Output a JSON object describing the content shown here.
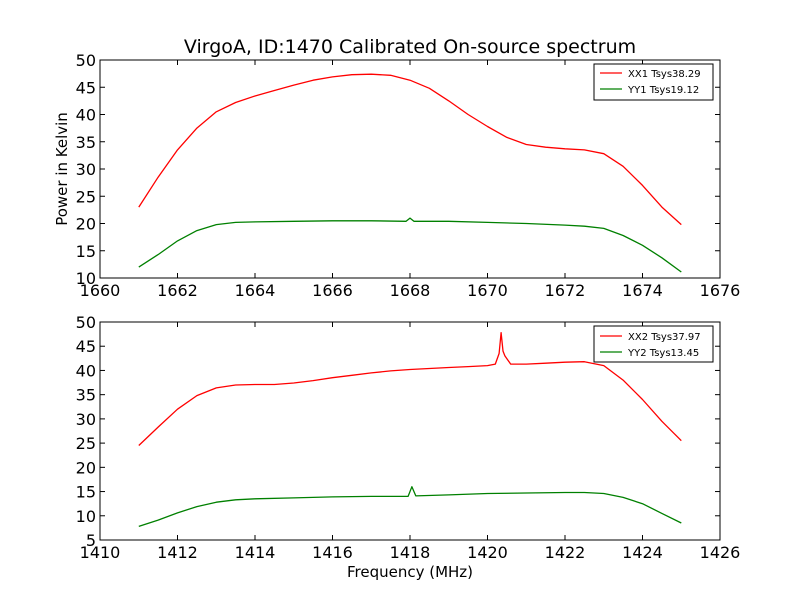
{
  "chart_data": [
    {
      "type": "line",
      "title": "VirgoA, ID:1470 Calibrated On-source spectrum",
      "xlabel": "",
      "ylabel": "Power in Kelvin",
      "xlim": [
        1660,
        1676
      ],
      "ylim": [
        10,
        50
      ],
      "xticks": [
        1660,
        1662,
        1664,
        1666,
        1668,
        1670,
        1672,
        1674,
        1676
      ],
      "yticks": [
        10,
        15,
        20,
        25,
        30,
        35,
        40,
        45,
        50
      ],
      "grid": false,
      "legend_position": "top-right",
      "series": [
        {
          "name": "XX1 Tsys38.29",
          "color": "#ff0000",
          "x": [
            1661.0,
            1661.5,
            1662.0,
            1662.5,
            1663.0,
            1663.5,
            1664.0,
            1664.5,
            1665.0,
            1665.5,
            1666.0,
            1666.5,
            1667.0,
            1667.5,
            1668.0,
            1668.5,
            1669.0,
            1669.5,
            1670.0,
            1670.5,
            1671.0,
            1671.5,
            1672.0,
            1672.5,
            1673.0,
            1673.5,
            1674.0,
            1674.5,
            1675.0
          ],
          "y": [
            23.0,
            28.5,
            33.5,
            37.5,
            40.5,
            42.2,
            43.4,
            44.4,
            45.4,
            46.3,
            46.9,
            47.3,
            47.4,
            47.2,
            46.3,
            44.8,
            42.5,
            40.0,
            37.8,
            35.8,
            34.5,
            34.0,
            33.7,
            33.5,
            32.8,
            30.5,
            27.0,
            23.0,
            19.8
          ]
        },
        {
          "name": "YY1 Tsys19.12",
          "color": "#008000",
          "x": [
            1661.0,
            1661.5,
            1662.0,
            1662.5,
            1663.0,
            1663.5,
            1664.0,
            1665.0,
            1666.0,
            1667.0,
            1667.9,
            1668.0,
            1668.1,
            1669.0,
            1670.0,
            1671.0,
            1672.0,
            1672.5,
            1673.0,
            1673.5,
            1674.0,
            1674.5,
            1675.0
          ],
          "y": [
            12.0,
            14.3,
            16.8,
            18.7,
            19.8,
            20.2,
            20.3,
            20.4,
            20.5,
            20.5,
            20.4,
            21.0,
            20.4,
            20.4,
            20.2,
            20.0,
            19.7,
            19.5,
            19.1,
            17.8,
            16.0,
            13.7,
            11.1
          ]
        }
      ]
    },
    {
      "type": "line",
      "title": "",
      "xlabel": "Frequency (MHz)",
      "ylabel": "",
      "xlim": [
        1410,
        1426
      ],
      "ylim": [
        5,
        50
      ],
      "xticks": [
        1410,
        1412,
        1414,
        1416,
        1418,
        1420,
        1422,
        1424,
        1426
      ],
      "yticks": [
        5,
        10,
        15,
        20,
        25,
        30,
        35,
        40,
        45,
        50
      ],
      "grid": false,
      "legend_position": "top-right",
      "series": [
        {
          "name": "XX2 Tsys37.97",
          "color": "#ff0000",
          "x": [
            1411.0,
            1411.5,
            1412.0,
            1412.5,
            1413.0,
            1413.5,
            1414.0,
            1414.5,
            1415.0,
            1415.5,
            1416.0,
            1416.5,
            1417.0,
            1417.5,
            1418.0,
            1418.5,
            1419.0,
            1419.5,
            1420.0,
            1420.2,
            1420.3,
            1420.35,
            1420.4,
            1420.45,
            1420.6,
            1421.0,
            1421.5,
            1422.0,
            1422.5,
            1423.0,
            1423.5,
            1424.0,
            1424.5,
            1425.0
          ],
          "y": [
            24.5,
            28.3,
            32.0,
            34.8,
            36.4,
            37.0,
            37.1,
            37.1,
            37.4,
            37.9,
            38.5,
            39.0,
            39.5,
            39.9,
            40.2,
            40.4,
            40.6,
            40.8,
            41.0,
            41.3,
            43.5,
            47.8,
            44.0,
            43.0,
            41.3,
            41.3,
            41.5,
            41.7,
            41.8,
            41.0,
            38.0,
            34.0,
            29.5,
            25.5
          ]
        },
        {
          "name": "YY2 Tsys13.45",
          "color": "#008000",
          "x": [
            1411.0,
            1411.5,
            1412.0,
            1412.5,
            1413.0,
            1413.5,
            1414.0,
            1415.0,
            1416.0,
            1417.0,
            1417.95,
            1418.05,
            1418.15,
            1419.0,
            1420.0,
            1421.0,
            1422.0,
            1422.5,
            1423.0,
            1423.5,
            1424.0,
            1424.5,
            1425.0
          ],
          "y": [
            7.8,
            9.1,
            10.6,
            11.9,
            12.8,
            13.3,
            13.5,
            13.7,
            13.9,
            14.0,
            14.0,
            16.0,
            14.1,
            14.3,
            14.6,
            14.7,
            14.8,
            14.8,
            14.6,
            13.8,
            12.5,
            10.5,
            8.5
          ]
        }
      ]
    }
  ]
}
